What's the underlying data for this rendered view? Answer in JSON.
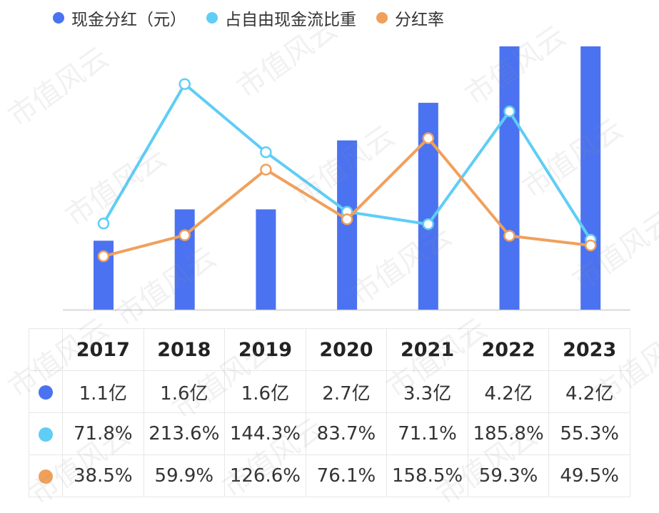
{
  "colors": {
    "dividend": "#4b72f0",
    "fcf_ratio": "#5fcdf6",
    "payout": "#f0a05b"
  },
  "legend": [
    {
      "label": "现金分红（元）",
      "color": "#4b72f0"
    },
    {
      "label": "占自由现金流比重",
      "color": "#5fcdf6"
    },
    {
      "label": "分红率",
      "color": "#f0a05b"
    }
  ],
  "watermark_text": "市值风云",
  "table": {
    "years": [
      "2017",
      "2018",
      "2019",
      "2020",
      "2021",
      "2022",
      "2023"
    ],
    "rows": [
      {
        "series": "dividend",
        "values": [
          "1.1亿",
          "1.6亿",
          "1.6亿",
          "2.7亿",
          "3.3亿",
          "4.2亿",
          "4.2亿"
        ]
      },
      {
        "series": "fcf_ratio",
        "values": [
          "71.8%",
          "213.6%",
          "144.3%",
          "83.7%",
          "71.1%",
          "185.8%",
          "55.3%"
        ]
      },
      {
        "series": "payout",
        "values": [
          "38.5%",
          "59.9%",
          "126.6%",
          "76.1%",
          "158.5%",
          "59.3%",
          "49.5%"
        ]
      }
    ]
  },
  "chart_data": {
    "type": "bar",
    "categories": [
      "2017",
      "2018",
      "2019",
      "2020",
      "2021",
      "2022",
      "2023"
    ],
    "series": [
      {
        "name": "现金分红（元）",
        "type": "bar",
        "unit": "亿",
        "values": [
          1.1,
          1.6,
          1.6,
          2.7,
          3.3,
          4.2,
          4.2
        ]
      },
      {
        "name": "占自由现金流比重",
        "type": "line",
        "unit": "%",
        "values": [
          71.8,
          213.6,
          144.3,
          83.7,
          71.1,
          185.8,
          55.3
        ]
      },
      {
        "name": "分红率",
        "type": "line",
        "unit": "%",
        "values": [
          38.5,
          59.9,
          126.6,
          76.1,
          158.5,
          59.3,
          49.5
        ]
      }
    ],
    "legend_position": "top-left",
    "grid": false
  }
}
